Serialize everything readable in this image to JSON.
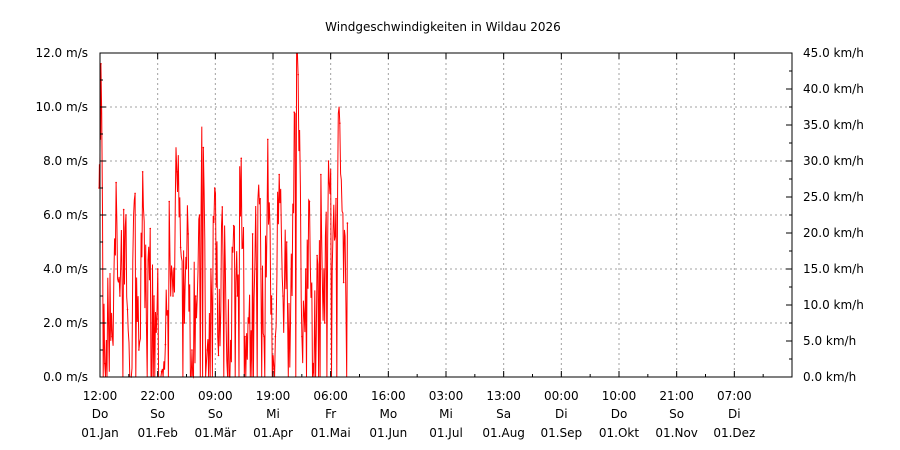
{
  "chart_data": {
    "type": "line",
    "title": "Windgeschwindigkeiten in Wildau 2026",
    "xlabel": "",
    "ylabel": "",
    "grid": true,
    "colors": {
      "series": "#ff0000",
      "grid": "#a0a0a0",
      "axis": "#000000"
    },
    "y_left": {
      "unit": "m/s",
      "ylim": [
        0,
        12
      ],
      "ticks": [
        "0.0 m/s",
        "2.0 m/s",
        "4.0 m/s",
        "6.0 m/s",
        "8.0 m/s",
        "10.0 m/s",
        "12.0 m/s"
      ]
    },
    "y_right": {
      "unit": "km/h",
      "ylim": [
        0,
        45
      ],
      "ticks": [
        "0.0 km/h",
        "5.0 km/h",
        "10.0 km/h",
        "15.0 km/h",
        "20.0 km/h",
        "25.0 km/h",
        "30.0 km/h",
        "35.0 km/h",
        "40.0 km/h",
        "45.0 km/h"
      ]
    },
    "xlim": [
      "2026-01-01 12:00",
      "2027-01-01 12:00"
    ],
    "x_ticks": [
      {
        "time": "12:00",
        "day": "Do",
        "date": "01.Jan"
      },
      {
        "time": "22:00",
        "day": "So",
        "date": "01.Feb"
      },
      {
        "time": "09:00",
        "day": "So",
        "date": "01.Mär"
      },
      {
        "time": "19:00",
        "day": "Mi",
        "date": "01.Apr"
      },
      {
        "time": "06:00",
        "day": "Fr",
        "date": "01.Mai"
      },
      {
        "time": "16:00",
        "day": "Mo",
        "date": "01.Jun"
      },
      {
        "time": "03:00",
        "day": "Mi",
        "date": "01.Jul"
      },
      {
        "time": "13:00",
        "day": "Sa",
        "date": "01.Aug"
      },
      {
        "time": "00:00",
        "day": "Di",
        "date": "01.Sep"
      },
      {
        "time": "10:00",
        "day": "Do",
        "date": "01.Okt"
      },
      {
        "time": "21:00",
        "day": "So",
        "date": "01.Nov"
      },
      {
        "time": "07:00",
        "day": "Di",
        "date": "01.Dez"
      }
    ],
    "series": [
      {
        "unit": "m/s",
        "x": [
          "2026-01-01",
          "2026-01-02",
          "2026-01-04",
          "2026-01-06",
          "2026-01-08",
          "2026-01-10",
          "2026-01-12",
          "2026-01-14",
          "2026-01-16",
          "2026-01-18",
          "2026-01-20",
          "2026-01-22",
          "2026-01-24",
          "2026-01-26",
          "2026-01-28",
          "2026-01-30",
          "2026-02-01",
          "2026-02-03",
          "2026-02-05",
          "2026-02-07",
          "2026-02-09",
          "2026-02-11",
          "2026-02-13",
          "2026-02-15",
          "2026-02-17",
          "2026-02-19",
          "2026-02-21",
          "2026-02-23",
          "2026-02-25",
          "2026-02-27",
          "2026-03-01",
          "2026-03-03",
          "2026-03-05",
          "2026-03-07",
          "2026-03-09",
          "2026-03-11",
          "2026-03-13",
          "2026-03-15",
          "2026-03-17",
          "2026-03-19",
          "2026-03-21",
          "2026-03-23",
          "2026-03-25",
          "2026-03-27",
          "2026-03-29",
          "2026-03-31",
          "2026-04-02",
          "2026-04-04",
          "2026-04-06",
          "2026-04-08",
          "2026-04-10",
          "2026-04-12",
          "2026-04-14",
          "2026-04-16",
          "2026-04-18",
          "2026-04-20",
          "2026-04-22",
          "2026-04-24",
          "2026-04-26",
          "2026-04-28",
          "2026-04-30",
          "2026-05-02",
          "2026-05-04",
          "2026-05-06",
          "2026-05-08",
          "2026-05-10",
          "2026-05-12"
        ],
        "values": [
          7.0,
          11.6,
          0.5,
          2.0,
          1.5,
          7.2,
          3.0,
          6.2,
          2.5,
          0.0,
          6.8,
          1.0,
          7.6,
          2.0,
          5.5,
          3.0,
          4.0,
          0.2,
          1.2,
          6.5,
          3.0,
          7.6,
          4.8,
          2.0,
          5.3,
          1.0,
          3.0,
          6.0,
          8.5,
          1.0,
          4.0,
          7.0,
          0.8,
          6.3,
          2.0,
          0.0,
          5.6,
          3.0,
          8.1,
          1.5,
          2.0,
          5.3,
          4.0,
          6.6,
          1.5,
          8.8,
          3.0,
          1.5,
          7.5,
          3.0,
          5.0,
          2.0,
          9.8,
          11.2,
          1.5,
          4.0,
          6.5,
          0.5,
          4.5,
          7.5,
          2.0,
          8.0,
          4.0,
          6.6,
          9.4,
          3.5,
          5.7
        ]
      }
    ]
  }
}
